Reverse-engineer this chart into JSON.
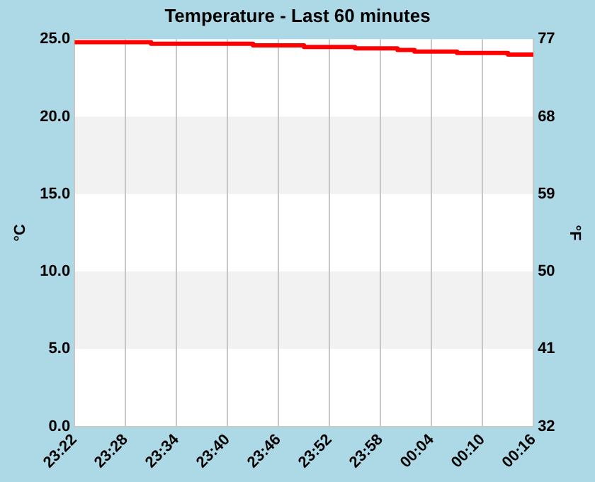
{
  "chart_data": {
    "type": "step",
    "title": "Temperature - Last 60 minutes",
    "ylabel": "°C",
    "y2label": "°F",
    "x": [
      "--01-01T23:22",
      "--01-01T23:31",
      "--01-01T23:43",
      "--01-01T23:49",
      "--01-01T23:55",
      "--01-02T00:00",
      "--01-02T00:02",
      "--01-02T00:07",
      "--01-02T00:13",
      "--01-02T00:16"
    ],
    "series": [
      {
        "color": "#ff0000",
        "values": [
          24.8,
          24.7,
          24.6,
          24.5,
          24.4,
          24.3,
          24.2,
          24.1,
          24.0,
          24.0
        ]
      }
    ],
    "xlim": [
      "--01-01T23:22",
      "--01-02T00:16"
    ],
    "xticks": [
      {
        "value": "--01-01T23:22",
        "label": "23:22"
      },
      {
        "value": "--01-01T23:28",
        "label": "23:28"
      },
      {
        "value": "--01-01T23:34",
        "label": "23:34"
      },
      {
        "value": "--01-01T23:40",
        "label": "23:40"
      },
      {
        "value": "--01-01T23:46",
        "label": "23:46"
      },
      {
        "value": "--01-01T23:52",
        "label": "23:52"
      },
      {
        "value": "--01-01T23:58",
        "label": "23:58"
      },
      {
        "value": "--01-02T00:04",
        "label": "00:04"
      },
      {
        "value": "--01-02T00:10",
        "label": "00:10"
      },
      {
        "value": "--01-02T00:16",
        "label": "00:16"
      }
    ],
    "ylim": [
      0,
      25
    ],
    "yticks": [
      {
        "value": 0,
        "label": "0.0"
      },
      {
        "value": 5,
        "label": "5.0"
      },
      {
        "value": 10,
        "label": "10.0"
      },
      {
        "value": 15,
        "label": "15.0"
      },
      {
        "value": 20,
        "label": "20.0"
      },
      {
        "value": 25,
        "label": "25.0"
      }
    ],
    "y2lim": [
      32,
      77
    ],
    "y2ticks": [
      32,
      41,
      50,
      59,
      68,
      77
    ],
    "bands": [
      {
        "axis": "y",
        "from": 5,
        "to": 10,
        "color": "#f2f2f2"
      },
      {
        "axis": "y",
        "from": 15,
        "to": 20,
        "color": "#f2f2f2"
      }
    ],
    "grid": "x",
    "legend": false,
    "marker": "none",
    "line_style": "solid"
  }
}
